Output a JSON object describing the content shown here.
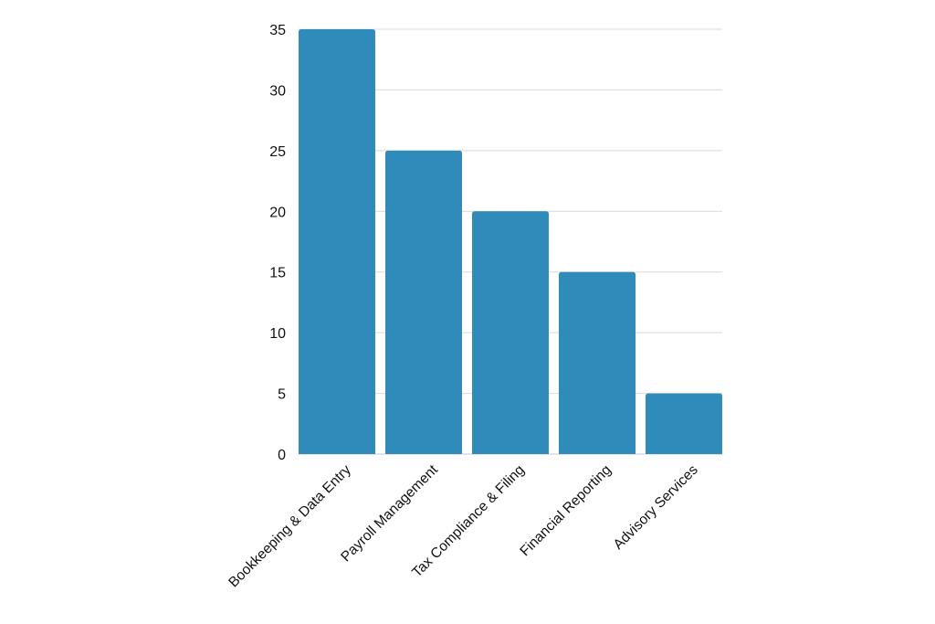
{
  "chart_data": {
    "type": "bar",
    "title": "",
    "xlabel": "",
    "ylabel": "",
    "categories": [
      "Bookkeeping & Data Entry",
      "Payroll Management",
      "Tax Compliance & Filing",
      "Financial Reporting",
      "Advisory Services"
    ],
    "values": [
      35,
      25,
      20,
      15,
      5
    ],
    "ylim": [
      0,
      35
    ],
    "yticks": [
      0,
      5,
      10,
      15,
      20,
      25,
      30,
      35
    ],
    "grid": true,
    "legend": "none",
    "colors": {
      "bar": "#2e8bba",
      "grid": "#d9d9d9",
      "text": "#111111"
    }
  }
}
